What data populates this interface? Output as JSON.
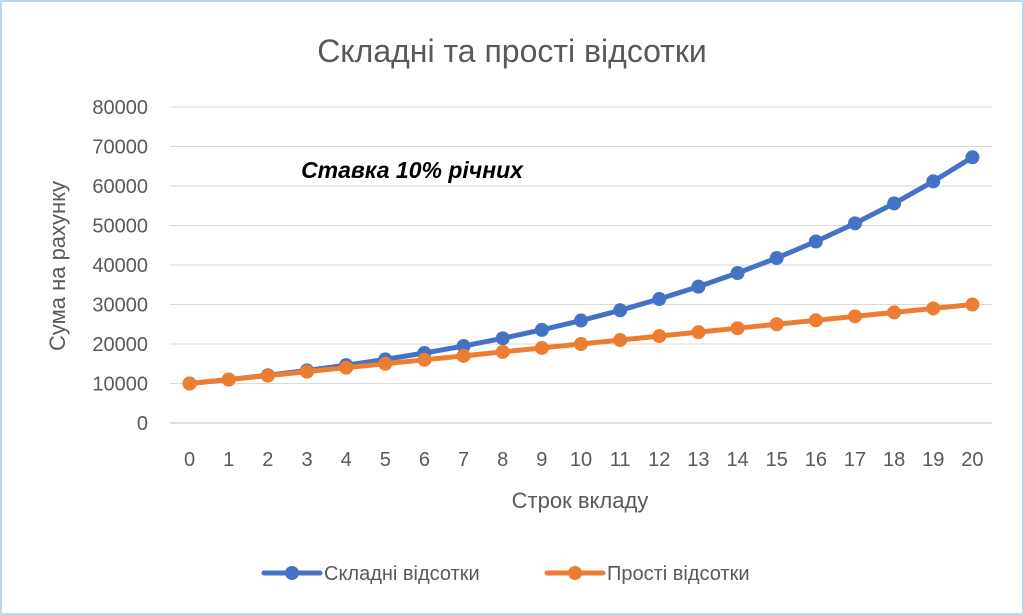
{
  "chart_data": {
    "type": "line",
    "title": "Складні та прості відсотки",
    "xlabel": "Строк вкладу",
    "ylabel": "Сума на рахунку",
    "annotation": "Ставка 10% річних",
    "x": [
      0,
      1,
      2,
      3,
      4,
      5,
      6,
      7,
      8,
      9,
      10,
      11,
      12,
      13,
      14,
      15,
      16,
      17,
      18,
      19,
      20
    ],
    "ylim": [
      0,
      80000
    ],
    "yticks": [
      0,
      10000,
      20000,
      30000,
      40000,
      50000,
      60000,
      70000,
      80000
    ],
    "grid": true,
    "legend_position": "bottom",
    "series": [
      {
        "name": "Складні відсотки",
        "color": "#4472c4",
        "values": [
          10000,
          11000,
          12100,
          13310,
          14641,
          16105,
          17716,
          19487,
          21436,
          23579,
          25937,
          28531,
          31384,
          34523,
          37975,
          41772,
          45950,
          50545,
          55599,
          61159,
          67275
        ]
      },
      {
        "name": "Прості відсотки",
        "color": "#ed7d31",
        "values": [
          10000,
          11000,
          12000,
          13000,
          14000,
          15000,
          16000,
          17000,
          18000,
          19000,
          20000,
          21000,
          22000,
          23000,
          24000,
          25000,
          26000,
          27000,
          28000,
          29000,
          30000
        ]
      }
    ]
  }
}
